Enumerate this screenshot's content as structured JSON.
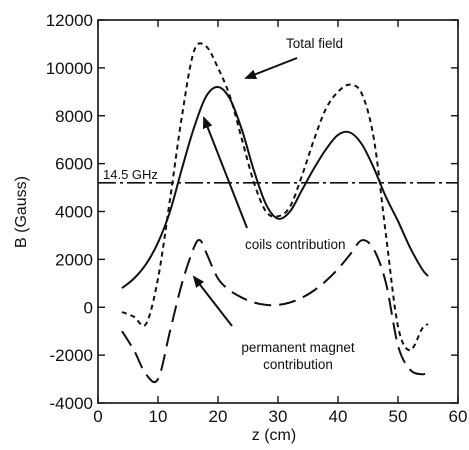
{
  "chart_data": {
    "type": "line",
    "xlabel": "z (cm)",
    "ylabel": "B (Gauss)",
    "xlim": [
      0,
      60
    ],
    "ylim": [
      -4000,
      12000
    ],
    "x_ticks": [
      0,
      10,
      20,
      30,
      40,
      50,
      60
    ],
    "y_ticks": [
      -4000,
      -2000,
      0,
      2000,
      4000,
      6000,
      8000,
      10000,
      12000
    ],
    "grid": false,
    "legend": "none",
    "series": [
      {
        "name": "Total field",
        "style": "short-dash",
        "x": [
          4,
          6,
          8,
          10,
          12,
          14,
          16,
          18,
          20,
          22,
          24,
          26,
          28,
          30,
          32,
          34,
          36,
          38,
          40,
          42,
          44,
          46,
          48,
          50,
          52,
          54,
          55
        ],
        "y": [
          -200,
          -400,
          -700,
          1200,
          4500,
          8000,
          10700,
          10900,
          10000,
          8800,
          7000,
          5200,
          4000,
          3800,
          4200,
          5500,
          7000,
          8300,
          9000,
          9300,
          8900,
          7000,
          3000,
          -800,
          -1800,
          -900,
          -700
        ]
      },
      {
        "name": "coils contribution",
        "style": "solid",
        "x": [
          4,
          6,
          8,
          10,
          12,
          14,
          16,
          18,
          20,
          22,
          24,
          26,
          28,
          30,
          32,
          34,
          36,
          38,
          40,
          42,
          44,
          46,
          48,
          50,
          52,
          54,
          55
        ],
        "y": [
          800,
          1200,
          1800,
          2700,
          4000,
          5800,
          7500,
          8800,
          9200,
          8700,
          7400,
          5700,
          4300,
          3700,
          4000,
          4900,
          5800,
          6600,
          7200,
          7300,
          6800,
          5800,
          4600,
          3600,
          2500,
          1600,
          1300
        ]
      },
      {
        "name": "permanent magnet contribution",
        "style": "long-dash",
        "x": [
          4,
          6,
          8,
          10,
          12,
          14,
          16,
          17,
          18,
          20,
          22,
          24,
          26,
          28,
          30,
          32,
          34,
          36,
          38,
          40,
          42,
          44,
          46,
          48,
          50,
          52,
          54,
          55
        ],
        "y": [
          -1000,
          -1800,
          -2800,
          -3000,
          -1000,
          1000,
          2500,
          2800,
          2300,
          1200,
          700,
          400,
          200,
          100,
          100,
          200,
          400,
          700,
          1100,
          1600,
          2200,
          2800,
          2400,
          1000,
          -1600,
          -2600,
          -2800,
          -2700
        ]
      }
    ],
    "reference_lines": [
      {
        "label": "14.5 GHz",
        "y": 5200,
        "style": "dash-dot"
      }
    ],
    "annotations": [
      {
        "text": "Total field"
      },
      {
        "text": "coils contribution"
      },
      {
        "text_lines": [
          "permanent magnet",
          "contribution"
        ]
      }
    ]
  }
}
